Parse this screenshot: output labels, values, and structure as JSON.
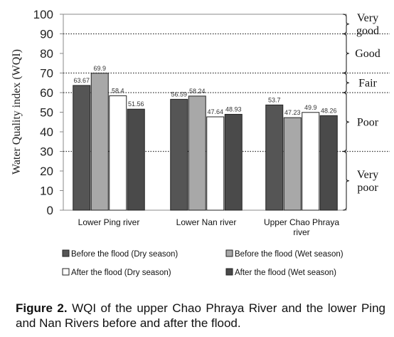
{
  "chart_data": {
    "type": "bar",
    "ylabel": "Water Quality index (WQI)",
    "ylim": [
      0,
      100
    ],
    "yticks": [
      "0",
      "10",
      "20",
      "30",
      "40",
      "50",
      "60",
      "70",
      "80",
      "90",
      "100"
    ],
    "categories": [
      "Lower Ping river",
      "Lower Nan river",
      "Upper Chao Phraya river"
    ],
    "category_lines": [
      [
        "Lower Ping river"
      ],
      [
        "Lower Nan river"
      ],
      [
        "Upper Chao Phraya",
        "river"
      ]
    ],
    "series": [
      {
        "name": "Before the flood (Dry season)",
        "values": [
          63.67,
          56.59,
          53.7
        ],
        "labels": [
          "63.67",
          "56.59",
          "53.7"
        ],
        "color": "#555555"
      },
      {
        "name": "Before the flood (Wet season)",
        "values": [
          69.9,
          58.24,
          47.23
        ],
        "labels": [
          "69.9",
          "58.24",
          "47.23"
        ],
        "color": "#a8a8a8"
      },
      {
        "name": "After the flood (Dry season)",
        "values": [
          58.4,
          47.64,
          49.9
        ],
        "labels": [
          "58.4",
          "47.64",
          "49.9"
        ],
        "color": "#ffffff"
      },
      {
        "name": "After the flood (Wet season)",
        "values": [
          51.56,
          48.93,
          48.26
        ],
        "labels": [
          "51.56",
          "48.93",
          "48.26"
        ],
        "color": "#4a4a4a"
      }
    ],
    "thresholds": [
      90,
      70,
      60,
      30
    ],
    "bands": [
      {
        "lines": [
          "Very",
          "good"
        ],
        "from": 90,
        "to": 100
      },
      {
        "lines": [
          "Good"
        ],
        "from": 70,
        "to": 90
      },
      {
        "lines": [
          "Fair"
        ],
        "from": 60,
        "to": 70
      },
      {
        "lines": [
          "Poor"
        ],
        "from": 30,
        "to": 60
      },
      {
        "lines": [
          "Very",
          "poor"
        ],
        "from": 0,
        "to": 30
      }
    ],
    "legend_position": "bottom"
  },
  "caption": {
    "label": "Figure 2.",
    "text": " WQI of the upper Chao Phraya River and the lower Ping and Nan Rivers before and after the flood."
  }
}
